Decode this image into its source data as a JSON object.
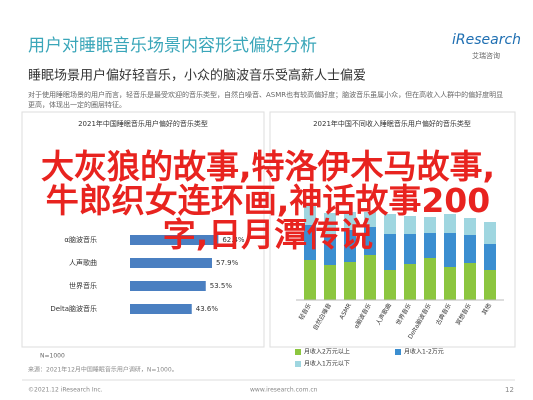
{
  "header": {
    "title": "用户对睡眠音乐场景内容形式偏好分析",
    "logo": "iResearch",
    "logo_sub": "艾瑞咨询",
    "subtitle": "睡眠场景用户偏好轻音乐，小众的脑波音乐受高薪人士偏爱",
    "body": "对于使用睡眠场景的用户而言，轻音乐是最受欢迎的音乐类型，自然白噪音、ASMR也有较高偏好度；脑波音乐虽属小众，但在高收入人群中的偏好度明显更高，体现出一定的圈层特征。"
  },
  "overlay_text": "大灰狼的故事,特洛伊木马故事,牛郎织女连环画,神话故事200字,日月潭传说",
  "chart_data": [
    {
      "type": "hbar",
      "title": "2021年中国睡眠音乐用户偏好的音乐类型",
      "categories": [
        "α脑波音乐",
        "人声歌曲",
        "世界音乐",
        "Delta脑波音乐"
      ],
      "values": [
        62.4,
        57.9,
        53.5,
        43.6
      ],
      "value_labels": [
        "62.4%",
        "57.9%",
        "53.5%",
        "43.6%"
      ],
      "color": "#4a7fc1",
      "xlim": [
        0,
        100
      ],
      "note": "N=1000"
    },
    {
      "type": "stacked-bar",
      "title": "2021年中国不同收入睡眠音乐用户偏好的音乐类型",
      "categories": [
        "轻音乐",
        "自然白噪音",
        "ASMR",
        "α脑波音乐",
        "人声歌曲",
        "世界音乐",
        "Delta脑波音乐",
        "古典音乐",
        "冥想音乐",
        "其他"
      ],
      "series": [
        {
          "name": "月收入2万元以上",
          "color": "#8cc63f",
          "values": [
            40,
            35,
            38,
            45,
            30,
            36,
            42,
            33,
            37,
            30
          ]
        },
        {
          "name": "月收入1-2万元",
          "color": "#3b8ed0",
          "values": [
            35,
            30,
            32,
            28,
            36,
            30,
            25,
            34,
            28,
            26
          ]
        },
        {
          "name": "月收入1万元以下",
          "color": "#9fd6e0",
          "values": [
            20,
            22,
            18,
            15,
            20,
            18,
            16,
            19,
            17,
            22
          ]
        }
      ],
      "ylim": [
        0,
        100
      ]
    }
  ],
  "footer": {
    "source": "来源：2021年12月中国睡眠音乐用户调研，N=1000。",
    "copyright": "©2021.12 iResearch Inc.",
    "site": "www.iresearch.com.cn",
    "page": "12"
  }
}
